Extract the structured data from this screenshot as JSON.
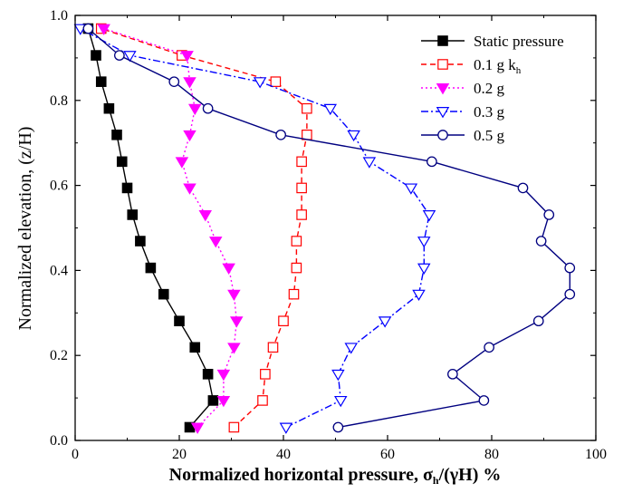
{
  "chart_data": {
    "type": "line",
    "xlabel": "Normalized horizontal pressure, σh/(γH) %",
    "xlabel_parts": {
      "main": "Normalized horizontal pressure, ",
      "sigma": "σ",
      "sub": "h",
      "tail": "/(γH) %"
    },
    "ylabel": "Normalized elevation, (z/H)",
    "xlim": [
      0,
      100
    ],
    "ylim": [
      0.0,
      1.0
    ],
    "xticks": [
      "0",
      "20",
      "40",
      "60",
      "80",
      "100"
    ],
    "yticks": [
      "0.0",
      "0.2",
      "0.4",
      "0.6",
      "0.8",
      "1.0"
    ],
    "legend_position": "top-right",
    "series": [
      {
        "name": "Static pressure",
        "legend_main": "Static pressure",
        "legend_sub": "",
        "color": "#000000",
        "marker": "square-filled",
        "dash": "solid",
        "points": [
          [
            22,
            0.031
          ],
          [
            26.5,
            0.094
          ],
          [
            25.5,
            0.156
          ],
          [
            23,
            0.219
          ],
          [
            20,
            0.281
          ],
          [
            17,
            0.344
          ],
          [
            14.5,
            0.406
          ],
          [
            12.5,
            0.469
          ],
          [
            11,
            0.531
          ],
          [
            10,
            0.594
          ],
          [
            9,
            0.656
          ],
          [
            8,
            0.719
          ],
          [
            6.5,
            0.781
          ],
          [
            5,
            0.844
          ],
          [
            4,
            0.906
          ],
          [
            2.5,
            0.969
          ]
        ]
      },
      {
        "name": "0.1 g kh",
        "legend_main": "0.1 g k",
        "legend_sub": "h",
        "color": "#ff0000",
        "marker": "square-open",
        "dash": "6,4",
        "points": [
          [
            30.5,
            0.031
          ],
          [
            36,
            0.094
          ],
          [
            36.5,
            0.156
          ],
          [
            38,
            0.219
          ],
          [
            40,
            0.281
          ],
          [
            42,
            0.344
          ],
          [
            42.5,
            0.406
          ],
          [
            42.5,
            0.469
          ],
          [
            43.5,
            0.531
          ],
          [
            43.5,
            0.594
          ],
          [
            43.5,
            0.656
          ],
          [
            44.5,
            0.719
          ],
          [
            44.5,
            0.781
          ],
          [
            38.5,
            0.844
          ],
          [
            20.5,
            0.906
          ],
          [
            5,
            0.969
          ]
        ]
      },
      {
        "name": "0.2 g",
        "legend_main": "0.2 g",
        "legend_sub": "",
        "color": "#ff00ff",
        "marker": "triangle-down-filled",
        "dash": "2,3",
        "points": [
          [
            23.5,
            0.031
          ],
          [
            28.5,
            0.094
          ],
          [
            28.5,
            0.156
          ],
          [
            30.5,
            0.219
          ],
          [
            31,
            0.281
          ],
          [
            30.5,
            0.344
          ],
          [
            29.5,
            0.406
          ],
          [
            27,
            0.469
          ],
          [
            25,
            0.531
          ],
          [
            22,
            0.594
          ],
          [
            20.5,
            0.656
          ],
          [
            22,
            0.719
          ],
          [
            23,
            0.781
          ],
          [
            22,
            0.844
          ],
          [
            21.5,
            0.906
          ],
          [
            5.5,
            0.969
          ]
        ]
      },
      {
        "name": "0.3 g",
        "legend_main": "0.3 g",
        "legend_sub": "",
        "color": "#0000ff",
        "marker": "triangle-down-open",
        "dash": "8,3,2,3",
        "points": [
          [
            40.5,
            0.031
          ],
          [
            51,
            0.094
          ],
          [
            50.5,
            0.156
          ],
          [
            53,
            0.219
          ],
          [
            59.5,
            0.281
          ],
          [
            66,
            0.344
          ],
          [
            67,
            0.406
          ],
          [
            67,
            0.469
          ],
          [
            68,
            0.531
          ],
          [
            64.5,
            0.594
          ],
          [
            56.5,
            0.656
          ],
          [
            53.5,
            0.719
          ],
          [
            49,
            0.781
          ],
          [
            35.5,
            0.844
          ],
          [
            10.5,
            0.906
          ],
          [
            1,
            0.969
          ]
        ]
      },
      {
        "name": "0.5 g",
        "legend_main": "0.5 g",
        "legend_sub": "",
        "color": "#000080",
        "marker": "circle-open",
        "dash": "solid",
        "points": [
          [
            50.5,
            0.031
          ],
          [
            78.5,
            0.094
          ],
          [
            72.5,
            0.156
          ],
          [
            79.5,
            0.219
          ],
          [
            89,
            0.281
          ],
          [
            95,
            0.344
          ],
          [
            95,
            0.406
          ],
          [
            89.5,
            0.469
          ],
          [
            91,
            0.531
          ],
          [
            86,
            0.594
          ],
          [
            68.5,
            0.656
          ],
          [
            39.5,
            0.719
          ],
          [
            25.5,
            0.781
          ],
          [
            19,
            0.844
          ],
          [
            8.5,
            0.906
          ],
          [
            2.5,
            0.969
          ]
        ]
      }
    ]
  }
}
